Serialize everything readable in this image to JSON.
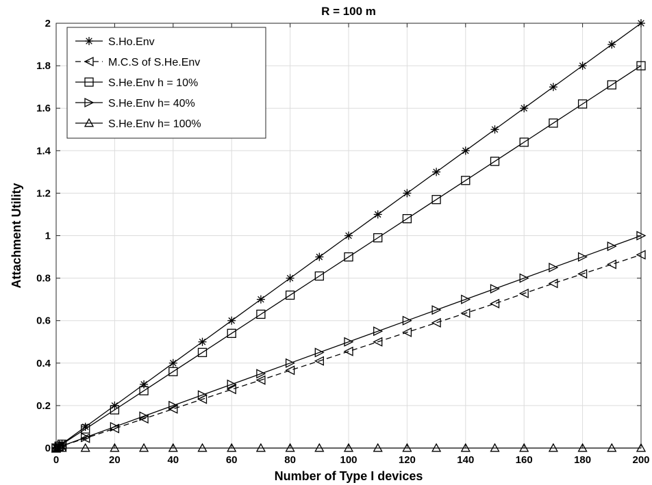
{
  "chart_data": {
    "type": "line",
    "title": "R = 100 m",
    "xlabel": "Number of Type I devices",
    "ylabel": "Attachment Utility",
    "xlim": [
      0,
      200
    ],
    "ylim": [
      0,
      2
    ],
    "xticks": [
      0,
      20,
      40,
      60,
      80,
      100,
      120,
      140,
      160,
      180,
      200
    ],
    "xtick_labels": [
      "0",
      "20",
      "40",
      "60",
      "80",
      "100",
      "120",
      "140",
      "160",
      "180",
      "200"
    ],
    "yticks": [
      0,
      0.2,
      0.4,
      0.6,
      0.8,
      1,
      1.2,
      1.4,
      1.6,
      1.8,
      2
    ],
    "ytick_labels": [
      "0",
      "0.2",
      "0.4",
      "0.6",
      "0.8",
      "1",
      "1.2",
      "1.4",
      "1.6",
      "1.8",
      "2"
    ],
    "grid": true,
    "legend_position": "top-left",
    "x": [
      0,
      1,
      2,
      10,
      20,
      30,
      40,
      50,
      60,
      70,
      80,
      90,
      100,
      110,
      120,
      130,
      140,
      150,
      160,
      170,
      180,
      190,
      200
    ],
    "series": [
      {
        "name": "S.Ho.Env",
        "marker": "asterisk",
        "line": "solid",
        "color": "#000000",
        "values": [
          0,
          0.01,
          0.02,
          0.1,
          0.2,
          0.3,
          0.4,
          0.5,
          0.6,
          0.7,
          0.8,
          0.9,
          1.0,
          1.1,
          1.2,
          1.3,
          1.4,
          1.5,
          1.6,
          1.7,
          1.8,
          1.9,
          2.0
        ]
      },
      {
        "name": "M.C.S of S.He.Env",
        "marker": "triangle-left",
        "line": "dashed",
        "color": "#000000",
        "values": [
          0,
          0.005,
          0.01,
          0.046,
          0.092,
          0.138,
          0.184,
          0.23,
          0.276,
          0.32,
          0.366,
          0.41,
          0.455,
          0.5,
          0.545,
          0.59,
          0.635,
          0.68,
          0.728,
          0.775,
          0.82,
          0.865,
          0.91
        ]
      },
      {
        "name": "S.He.Env h = 10%",
        "marker": "square",
        "line": "solid",
        "color": "#000000",
        "values": [
          0,
          0.009,
          0.018,
          0.09,
          0.18,
          0.27,
          0.36,
          0.45,
          0.54,
          0.63,
          0.72,
          0.81,
          0.9,
          0.99,
          1.08,
          1.17,
          1.26,
          1.35,
          1.44,
          1.53,
          1.62,
          1.71,
          1.8
        ]
      },
      {
        "name": "S.He.Env h= 40%",
        "marker": "triangle-right",
        "line": "solid",
        "color": "#000000",
        "values": [
          0,
          0.005,
          0.01,
          0.05,
          0.1,
          0.15,
          0.2,
          0.25,
          0.3,
          0.35,
          0.4,
          0.45,
          0.5,
          0.55,
          0.6,
          0.65,
          0.7,
          0.75,
          0.8,
          0.85,
          0.9,
          0.95,
          1.0
        ]
      },
      {
        "name": "S.He.Env h= 100%",
        "marker": "triangle-up",
        "line": "solid",
        "color": "#000000",
        "values": [
          0,
          0,
          0,
          0,
          0,
          0,
          0,
          0,
          0,
          0,
          0,
          0,
          0,
          0,
          0,
          0,
          0,
          0,
          0,
          0,
          0,
          0,
          0
        ]
      }
    ]
  }
}
